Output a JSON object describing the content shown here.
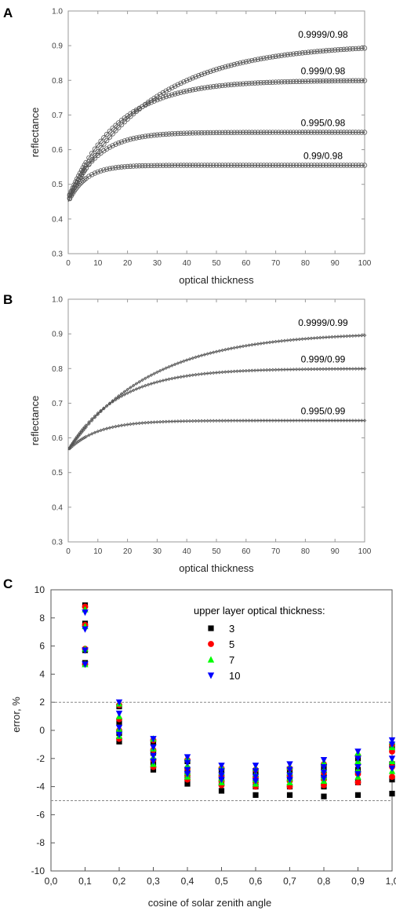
{
  "chart_data": [
    {
      "panel": "A",
      "type": "line",
      "xlabel": "optical thickness",
      "ylabel": "reflectance",
      "xlim": [
        0,
        100
      ],
      "ylim": [
        0.3,
        1.0
      ],
      "xticks": [
        "0",
        "10",
        "20",
        "30",
        "40",
        "50",
        "60",
        "70",
        "80",
        "90",
        "100"
      ],
      "yticks": [
        "0.3",
        "0.4",
        "0.5",
        "0.6",
        "0.7",
        "0.8",
        "0.9",
        "1.0"
      ],
      "marker": "open-circle",
      "series": [
        {
          "label": "0.9999/0.98",
          "start": 0.46,
          "asymptote": 0.905,
          "rate": 0.036
        },
        {
          "label": "0.999/0.98",
          "start": 0.46,
          "asymptote": 0.8,
          "rate": 0.06
        },
        {
          "label": "0.995/0.98",
          "start": 0.45,
          "asymptote": 0.65,
          "rate": 0.11
        },
        {
          "label": "0.99/0.98",
          "start": 0.45,
          "asymptote": 0.555,
          "rate": 0.17
        }
      ]
    },
    {
      "panel": "B",
      "type": "line",
      "xlabel": "optical thickness",
      "ylabel": "reflectance",
      "xlim": [
        0,
        100
      ],
      "ylim": [
        0.3,
        1.0
      ],
      "xticks": [
        "0",
        "10",
        "20",
        "30",
        "40",
        "50",
        "60",
        "70",
        "80",
        "90",
        "100"
      ],
      "yticks": [
        "0.3",
        "0.4",
        "0.5",
        "0.6",
        "0.7",
        "0.8",
        "0.9",
        "1.0"
      ],
      "marker": "small-diamond",
      "series": [
        {
          "label": "0.9999/0.99",
          "start": 0.565,
          "asymptote": 0.905,
          "rate": 0.036
        },
        {
          "label": "0.999/0.99",
          "start": 0.565,
          "asymptote": 0.8,
          "rate": 0.06
        },
        {
          "label": "0.995/0.99",
          "start": 0.565,
          "asymptote": 0.65,
          "rate": 0.1
        }
      ]
    },
    {
      "panel": "C",
      "type": "scatter",
      "xlabel": "cosine of solar zenith angle",
      "ylabel": "error, %",
      "xlim": [
        0.0,
        1.0
      ],
      "ylim": [
        -10,
        10
      ],
      "xticks": [
        "0,0",
        "0,1",
        "0,2",
        "0,3",
        "0,4",
        "0,5",
        "0,6",
        "0,7",
        "0,8",
        "0,9",
        "1,0"
      ],
      "yticks": [
        "-10",
        "-8",
        "-6",
        "-4",
        "-2",
        "0",
        "2",
        "4",
        "6",
        "8",
        "10"
      ],
      "reference_lines": [
        2,
        -5
      ],
      "legend_title": "upper layer optical thickness:",
      "legend_position": "top-right",
      "series": [
        {
          "name": "3",
          "marker": "square",
          "color": "#000000",
          "points": [
            [
              0.1,
              8.9
            ],
            [
              0.1,
              7.6
            ],
            [
              0.1,
              5.7
            ],
            [
              0.1,
              4.8
            ],
            [
              0.2,
              1.7
            ],
            [
              0.2,
              0.6
            ],
            [
              0.2,
              -0.2
            ],
            [
              0.2,
              -0.8
            ],
            [
              0.3,
              -0.8
            ],
            [
              0.3,
              -1.6
            ],
            [
              0.3,
              -2.3
            ],
            [
              0.3,
              -2.8
            ],
            [
              0.4,
              -2.2
            ],
            [
              0.4,
              -2.9
            ],
            [
              0.4,
              -3.4
            ],
            [
              0.4,
              -3.8
            ],
            [
              0.5,
              -2.8
            ],
            [
              0.5,
              -3.4
            ],
            [
              0.5,
              -3.8
            ],
            [
              0.5,
              -4.3
            ],
            [
              0.6,
              -2.9
            ],
            [
              0.6,
              -3.5
            ],
            [
              0.6,
              -4.0
            ],
            [
              0.6,
              -4.6
            ],
            [
              0.7,
              -2.8
            ],
            [
              0.7,
              -3.4
            ],
            [
              0.7,
              -4.0
            ],
            [
              0.7,
              -4.6
            ],
            [
              0.8,
              -2.6
            ],
            [
              0.8,
              -3.3
            ],
            [
              0.8,
              -4.0
            ],
            [
              0.8,
              -4.7
            ],
            [
              0.9,
              -2.0
            ],
            [
              0.9,
              -2.8
            ],
            [
              0.9,
              -3.7
            ],
            [
              0.9,
              -4.6
            ],
            [
              1.0,
              -1.2
            ],
            [
              1.0,
              -2.4
            ],
            [
              1.0,
              -3.5
            ],
            [
              1.0,
              -4.5
            ]
          ]
        },
        {
          "name": "5",
          "marker": "circle",
          "color": "#ff0000",
          "points": [
            [
              0.1,
              8.8
            ],
            [
              0.1,
              7.5
            ],
            [
              0.1,
              5.8
            ],
            [
              0.1,
              4.7
            ],
            [
              0.2,
              1.8
            ],
            [
              0.2,
              0.8
            ],
            [
              0.2,
              0.0
            ],
            [
              0.2,
              -0.6
            ],
            [
              0.3,
              -0.7
            ],
            [
              0.3,
              -1.4
            ],
            [
              0.3,
              -2.1
            ],
            [
              0.3,
              -2.6
            ],
            [
              0.4,
              -2.1
            ],
            [
              0.4,
              -2.7
            ],
            [
              0.4,
              -3.2
            ],
            [
              0.4,
              -3.5
            ],
            [
              0.5,
              -2.7
            ],
            [
              0.5,
              -3.2
            ],
            [
              0.5,
              -3.6
            ],
            [
              0.5,
              -3.9
            ],
            [
              0.6,
              -2.8
            ],
            [
              0.6,
              -3.3
            ],
            [
              0.6,
              -3.7
            ],
            [
              0.6,
              -4.0
            ],
            [
              0.7,
              -2.7
            ],
            [
              0.7,
              -3.2
            ],
            [
              0.7,
              -3.6
            ],
            [
              0.7,
              -4.0
            ],
            [
              0.8,
              -2.4
            ],
            [
              0.8,
              -3.0
            ],
            [
              0.8,
              -3.5
            ],
            [
              0.8,
              -3.9
            ],
            [
              0.9,
              -1.8
            ],
            [
              0.9,
              -2.4
            ],
            [
              0.9,
              -3.1
            ],
            [
              0.9,
              -3.7
            ],
            [
              1.0,
              -1.0
            ],
            [
              1.0,
              -1.5
            ],
            [
              1.0,
              -2.6
            ],
            [
              1.0,
              -3.3
            ]
          ]
        },
        {
          "name": "7",
          "marker": "triangle-up",
          "color": "#00ff00",
          "points": [
            [
              0.1,
              8.6
            ],
            [
              0.1,
              7.4
            ],
            [
              0.1,
              5.8
            ],
            [
              0.1,
              4.7
            ],
            [
              0.2,
              1.9
            ],
            [
              0.2,
              1.0
            ],
            [
              0.2,
              0.1
            ],
            [
              0.2,
              -0.4
            ],
            [
              0.3,
              -0.6
            ],
            [
              0.3,
              -1.3
            ],
            [
              0.3,
              -1.9
            ],
            [
              0.3,
              -2.4
            ],
            [
              0.4,
              -2.0
            ],
            [
              0.4,
              -2.5
            ],
            [
              0.4,
              -3.0
            ],
            [
              0.4,
              -3.3
            ],
            [
              0.5,
              -2.6
            ],
            [
              0.5,
              -3.0
            ],
            [
              0.5,
              -3.4
            ],
            [
              0.5,
              -3.7
            ],
            [
              0.6,
              -2.7
            ],
            [
              0.6,
              -3.1
            ],
            [
              0.6,
              -3.5
            ],
            [
              0.6,
              -3.8
            ],
            [
              0.7,
              -2.6
            ],
            [
              0.7,
              -3.0
            ],
            [
              0.7,
              -3.4
            ],
            [
              0.7,
              -3.7
            ],
            [
              0.8,
              -2.3
            ],
            [
              0.8,
              -2.8
            ],
            [
              0.8,
              -3.3
            ],
            [
              0.8,
              -3.6
            ],
            [
              0.9,
              -1.6
            ],
            [
              0.9,
              -2.2
            ],
            [
              0.9,
              -2.8
            ],
            [
              0.9,
              -3.3
            ],
            [
              1.0,
              -0.8
            ],
            [
              1.0,
              -1.2
            ],
            [
              1.0,
              -2.2
            ],
            [
              1.0,
              -2.9
            ]
          ]
        },
        {
          "name": "10",
          "marker": "triangle-down",
          "color": "#0000ff",
          "points": [
            [
              0.1,
              8.4
            ],
            [
              0.1,
              7.2
            ],
            [
              0.1,
              5.7
            ],
            [
              0.1,
              4.7
            ],
            [
              0.2,
              2.0
            ],
            [
              0.2,
              1.2
            ],
            [
              0.2,
              0.2
            ],
            [
              0.2,
              -0.3
            ],
            [
              0.3,
              -0.6
            ],
            [
              0.3,
              -1.2
            ],
            [
              0.3,
              -1.8
            ],
            [
              0.3,
              -2.2
            ],
            [
              0.4,
              -1.9
            ],
            [
              0.4,
              -2.3
            ],
            [
              0.4,
              -2.8
            ],
            [
              0.4,
              -3.1
            ],
            [
              0.5,
              -2.5
            ],
            [
              0.5,
              -2.9
            ],
            [
              0.5,
              -3.2
            ],
            [
              0.5,
              -3.5
            ],
            [
              0.6,
              -2.5
            ],
            [
              0.6,
              -2.9
            ],
            [
              0.6,
              -3.3
            ],
            [
              0.6,
              -3.6
            ],
            [
              0.7,
              -2.4
            ],
            [
              0.7,
              -2.8
            ],
            [
              0.7,
              -3.2
            ],
            [
              0.7,
              -3.5
            ],
            [
              0.8,
              -2.1
            ],
            [
              0.8,
              -2.6
            ],
            [
              0.8,
              -3.0
            ],
            [
              0.8,
              -3.4
            ],
            [
              0.9,
              -1.5
            ],
            [
              0.9,
              -2.0
            ],
            [
              0.9,
              -2.6
            ],
            [
              0.9,
              -3.1
            ],
            [
              1.0,
              -0.7
            ],
            [
              1.0,
              -1.0
            ],
            [
              1.0,
              -2.0
            ],
            [
              1.0,
              -2.7
            ]
          ]
        }
      ]
    }
  ]
}
